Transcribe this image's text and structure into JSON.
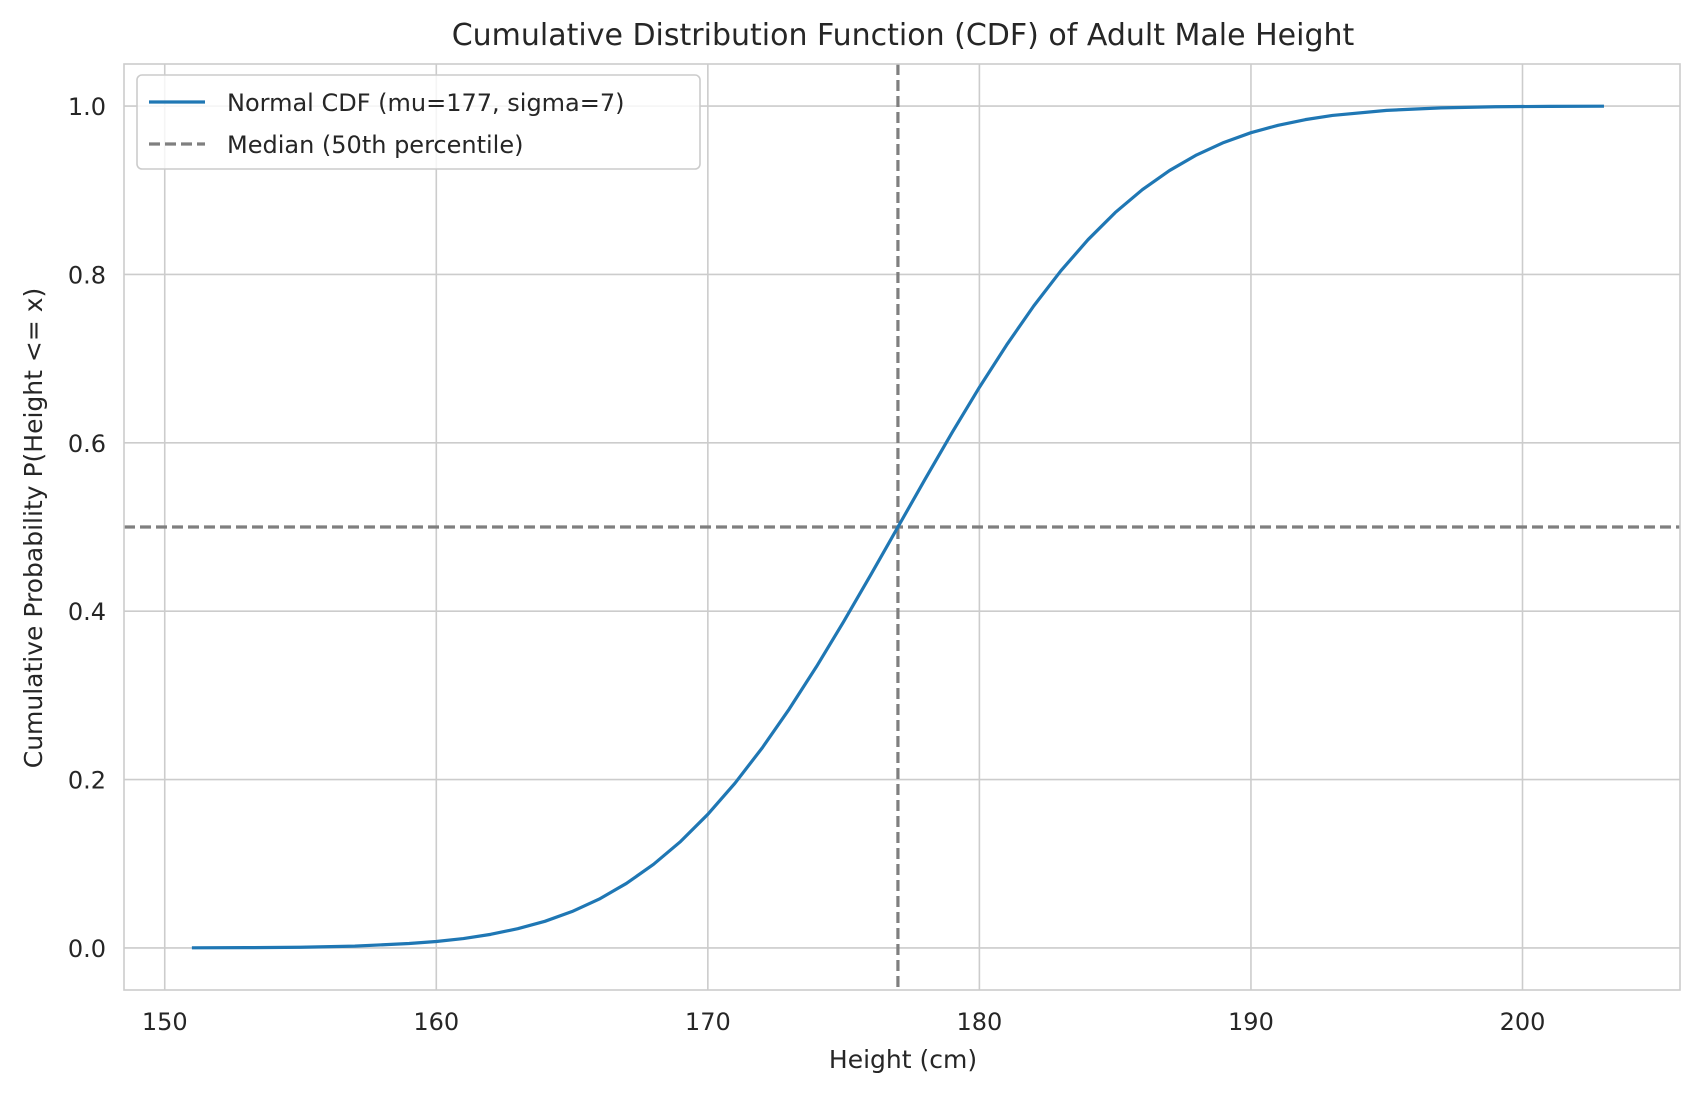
{
  "chart_data": {
    "type": "line",
    "title": "Cumulative Distribution Function (CDF) of Adult Male Height",
    "xlabel": "Height (cm)",
    "ylabel": "Cumulative Probability P(Height <= x)",
    "xlim": [
      148.5,
      205.8
    ],
    "ylim": [
      -0.05,
      1.05
    ],
    "x_ticks": [
      150,
      160,
      170,
      180,
      190,
      200
    ],
    "y_ticks": [
      0.0,
      0.2,
      0.4,
      0.6,
      0.8,
      1.0
    ],
    "x_tick_labels": [
      "150",
      "160",
      "170",
      "180",
      "190",
      "200"
    ],
    "y_tick_labels": [
      "0.0",
      "0.2",
      "0.4",
      "0.6",
      "0.8",
      "1.0"
    ],
    "grid": true,
    "legend_position": "top-left",
    "series": [
      {
        "name": "Normal CDF (mu=177, sigma=7)",
        "color": "#1f77b4",
        "style": "solid",
        "x": [
          151,
          153,
          155,
          157,
          159,
          160,
          161,
          162,
          163,
          164,
          165,
          166,
          167,
          168,
          169,
          170,
          171,
          172,
          173,
          174,
          175,
          176,
          177,
          178,
          179,
          180,
          181,
          182,
          183,
          184,
          185,
          186,
          187,
          188,
          189,
          190,
          191,
          192,
          193,
          195,
          197,
          199,
          201,
          203
        ],
        "y": [
          0.0001,
          0.0003,
          0.0008,
          0.0021,
          0.0052,
          0.0076,
          0.0111,
          0.0161,
          0.0228,
          0.0316,
          0.0432,
          0.058,
          0.0766,
          0.0993,
          0.1265,
          0.1587,
          0.1957,
          0.2375,
          0.2839,
          0.3341,
          0.3875,
          0.4432,
          0.5,
          0.5568,
          0.6125,
          0.6659,
          0.7161,
          0.7625,
          0.8043,
          0.8413,
          0.8735,
          0.9007,
          0.9234,
          0.942,
          0.9568,
          0.9684,
          0.9772,
          0.9839,
          0.9889,
          0.9949,
          0.9979,
          0.9992,
          0.9997,
          0.9999
        ]
      }
    ],
    "reference_lines": [
      {
        "name": "Median (50th percentile)",
        "orientation": "vertical",
        "value": 177,
        "color": "#7f7f7f",
        "style": "dashed"
      },
      {
        "name": "",
        "orientation": "horizontal",
        "value": 0.5,
        "color": "#7f7f7f",
        "style": "dashed"
      }
    ],
    "legend": [
      {
        "label": "Normal CDF (mu=177, sigma=7)",
        "color": "#1f77b4",
        "style": "solid"
      },
      {
        "label": "Median (50th percentile)",
        "color": "#7f7f7f",
        "style": "dashed"
      }
    ]
  }
}
